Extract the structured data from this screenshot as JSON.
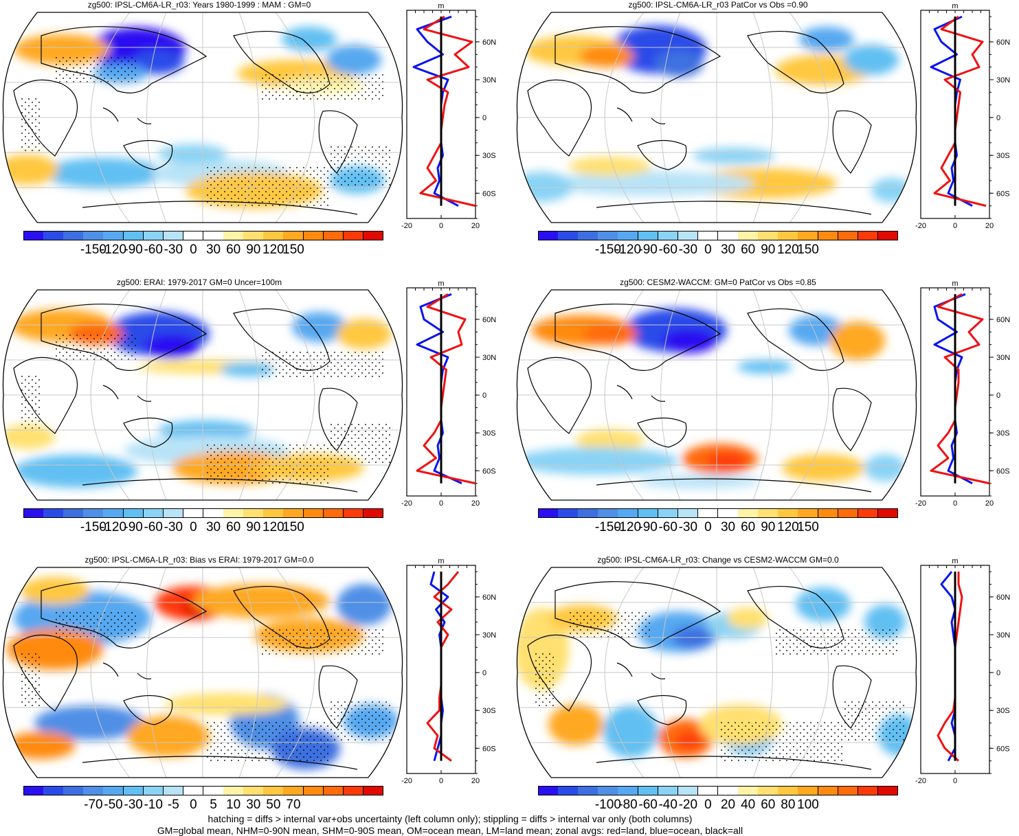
{
  "colors": [
    "#2a10f0",
    "#2b4be8",
    "#3d6fe0",
    "#4f8fe6",
    "#56a8f0",
    "#62bff2",
    "#8ad3f5",
    "#b8e3f7",
    "#ffffff",
    "#ffffff",
    "#fff3a8",
    "#ffe070",
    "#ffc840",
    "#ffa820",
    "#ff8a10",
    "#ff6a0a",
    "#ff3a0a",
    "#e00a00"
  ],
  "panels": [
    {
      "title": "zg500: IPSL-CM6A-LR_r03: Years 1980-1999 : MAM : GM=0",
      "colorbar_ticks": [
        "-150",
        "-120",
        "-90",
        "-60",
        "-30",
        "0",
        "30",
        "60",
        "90",
        "120",
        "150"
      ],
      "zonal": {
        "xticks": [
          "-20",
          "0",
          "20"
        ],
        "unit": "m",
        "lat_ticks": [
          "60N",
          "30N",
          "0",
          "30S",
          "60S"
        ]
      }
    },
    {
      "title": "zg500: IPSL-CM6A-LR_r03 PatCor vs Obs =0.90",
      "colorbar_ticks": [
        "-150",
        "-120",
        "-90",
        "-60",
        "-30",
        "0",
        "30",
        "60",
        "90",
        "120",
        "150"
      ],
      "zonal": {
        "xticks": [
          "-20",
          "0",
          "20"
        ],
        "unit": "m",
        "lat_ticks": [
          "60N",
          "30N",
          "0",
          "30S",
          "60S"
        ]
      }
    },
    {
      "title": "zg500: ERAI: 1979-2017 GM=0 Uncer=100m",
      "colorbar_ticks": [
        "-150",
        "-120",
        "-90",
        "-60",
        "-30",
        "0",
        "30",
        "60",
        "90",
        "120",
        "150"
      ],
      "zonal": {
        "xticks": [
          "-20",
          "0",
          "20"
        ],
        "unit": "m",
        "lat_ticks": [
          "60N",
          "30N",
          "0",
          "30S",
          "60S"
        ]
      }
    },
    {
      "title": "zg500: CESM2-WACCM: GM=0 PatCor vs Obs =0.85",
      "colorbar_ticks": [
        "-150",
        "-120",
        "-90",
        "-60",
        "-30",
        "0",
        "30",
        "60",
        "90",
        "120",
        "150"
      ],
      "zonal": {
        "xticks": [
          "-20",
          "0",
          "20"
        ],
        "unit": "m",
        "lat_ticks": [
          "60N",
          "30N",
          "0",
          "30S",
          "60S"
        ]
      }
    },
    {
      "title": "zg500: IPSL-CM6A-LR_r03: Bias vs ERAI: 1979-2017 GM=0.0",
      "colorbar_ticks": [
        "-70",
        "-50",
        "-30",
        "-10",
        "-5",
        "0",
        "5",
        "10",
        "30",
        "50",
        "70"
      ],
      "zonal": {
        "xticks": [
          "-20",
          "0",
          "20"
        ],
        "unit": "m",
        "lat_ticks": [
          "60N",
          "30N",
          "0",
          "30S",
          "60S"
        ]
      }
    },
    {
      "title": "zg500: IPSL-CM6A-LR_r03: Change vs CESM2-WACCM GM=0.0",
      "colorbar_ticks": [
        "-100",
        "-80",
        "-60",
        "-40",
        "-20",
        "0",
        "20",
        "40",
        "60",
        "80",
        "100"
      ],
      "zonal": {
        "xticks": [
          "-20",
          "0"
        ],
        "unit": "m",
        "lat_ticks": [
          "60N",
          "30N",
          "0",
          "30S",
          "60S"
        ]
      }
    }
  ],
  "chart_data": {
    "type": "heatmap",
    "variable": "zg500",
    "projection": "Robinson",
    "maps": [
      {
        "title": "zg500: IPSL-CM6A-LR_r03: Years 1980-1999 : MAM : GM=0",
        "levels": [
          -150,
          -120,
          -90,
          -60,
          -30,
          0,
          30,
          60,
          90,
          120,
          150
        ]
      },
      {
        "title": "zg500: IPSL-CM6A-LR_r03 PatCor vs Obs =0.90",
        "pattern_correlation": 0.9,
        "levels": [
          -150,
          -120,
          -90,
          -60,
          -30,
          0,
          30,
          60,
          90,
          120,
          150
        ]
      },
      {
        "title": "zg500: ERAI: 1979-2017 GM=0 Uncer=100m",
        "uncertainty_m": 100,
        "levels": [
          -150,
          -120,
          -90,
          -60,
          -30,
          0,
          30,
          60,
          90,
          120,
          150
        ]
      },
      {
        "title": "zg500: CESM2-WACCM: GM=0 PatCor vs Obs =0.85",
        "pattern_correlation": 0.85,
        "levels": [
          -150,
          -120,
          -90,
          -60,
          -30,
          0,
          30,
          60,
          90,
          120,
          150
        ]
      },
      {
        "title": "zg500: IPSL-CM6A-LR_r03: Bias vs ERAI: 1979-2017 GM=0.0",
        "levels": [
          -70,
          -50,
          -30,
          -10,
          -5,
          0,
          5,
          10,
          30,
          50,
          70
        ]
      },
      {
        "title": "zg500: IPSL-CM6A-LR_r03: Change vs CESM2-WACCM GM=0.0",
        "levels": [
          -100,
          -80,
          -60,
          -40,
          -20,
          0,
          20,
          40,
          60,
          80,
          100
        ]
      }
    ],
    "zonal_profiles": {
      "latitudes": [
        80,
        70,
        60,
        50,
        40,
        30,
        20,
        10,
        0,
        -10,
        -20,
        -30,
        -40,
        -50,
        -60,
        -70
      ],
      "panels": [
        {
          "land": [
            2,
            -10,
            18,
            8,
            16,
            -8,
            4,
            2,
            1,
            0,
            0,
            -4,
            -8,
            -3,
            -12,
            20
          ],
          "ocean": [
            6,
            -14,
            -8,
            1,
            -16,
            4,
            1,
            0,
            0,
            0,
            0,
            1,
            -2,
            -1,
            -4,
            10
          ],
          "all": [
            0,
            0,
            0,
            0,
            0,
            0,
            0,
            0,
            0,
            0,
            0,
            0,
            0,
            0,
            0,
            0
          ]
        },
        {
          "land": [
            2,
            -8,
            16,
            10,
            14,
            -6,
            3,
            2,
            1,
            0,
            0,
            -4,
            -8,
            -3,
            -12,
            18
          ],
          "ocean": [
            4,
            -12,
            -8,
            1,
            -14,
            3,
            1,
            0,
            0,
            0,
            0,
            1,
            -2,
            -1,
            -4,
            10
          ],
          "all": [
            0,
            0,
            0,
            0,
            0,
            0,
            0,
            0,
            0,
            0,
            0,
            0,
            0,
            0,
            0,
            0
          ]
        },
        {
          "land": [
            4,
            -8,
            14,
            10,
            12,
            -6,
            3,
            2,
            1,
            0,
            0,
            -4,
            -10,
            -3,
            -14,
            20
          ],
          "ocean": [
            6,
            -12,
            -10,
            1,
            -14,
            4,
            1,
            0,
            0,
            0,
            0,
            1,
            -2,
            -1,
            -4,
            12
          ],
          "all": [
            0,
            0,
            0,
            0,
            0,
            0,
            0,
            0,
            0,
            0,
            0,
            0,
            0,
            0,
            0,
            0
          ]
        },
        {
          "land": [
            4,
            -10,
            16,
            8,
            14,
            -6,
            2,
            2,
            1,
            0,
            0,
            -4,
            -10,
            -4,
            -14,
            20
          ],
          "ocean": [
            6,
            -12,
            -10,
            1,
            -12,
            4,
            1,
            0,
            0,
            0,
            0,
            1,
            -2,
            -1,
            -4,
            10
          ],
          "all": [
            0,
            0,
            0,
            0,
            0,
            0,
            0,
            0,
            0,
            0,
            0,
            0,
            0,
            0,
            0,
            0
          ]
        },
        {
          "land": [
            10,
            4,
            -4,
            6,
            -2,
            4,
            0,
            0,
            0,
            0,
            -1,
            -1,
            -8,
            -2,
            -4,
            6
          ],
          "ocean": [
            -4,
            -6,
            4,
            -3,
            2,
            -1,
            0,
            0,
            0,
            0,
            0,
            1,
            0,
            0,
            -2,
            -4
          ],
          "all": [
            0,
            0,
            0,
            0,
            0,
            0,
            0,
            0,
            0,
            0,
            0,
            0,
            0,
            0,
            0,
            0
          ]
        },
        {
          "land": [
            2,
            2,
            4,
            3,
            2,
            1,
            0,
            0,
            0,
            0,
            0,
            -1,
            -6,
            -10,
            -6,
            2
          ],
          "ocean": [
            -2,
            -8,
            -2,
            0,
            -2,
            -1,
            0,
            0,
            0,
            0,
            0,
            0,
            -2,
            0,
            0,
            -4
          ],
          "all": [
            0,
            0,
            0,
            0,
            0,
            0,
            0,
            0,
            0,
            0,
            0,
            0,
            0,
            0,
            0,
            0
          ]
        }
      ],
      "xlim": [
        -20,
        20
      ],
      "xlabel": "m"
    }
  },
  "footnotes": [
    "hatching = diffs > internal var+obs uncertainty (left column only); stippling = diffs > internal var only (both columns)",
    "GM=global mean, NHM=0-90N mean, SHM=0-90S mean, OM=ocean mean, LM=land mean; zonal avgs: red=land, blue=ocean, black=all"
  ]
}
